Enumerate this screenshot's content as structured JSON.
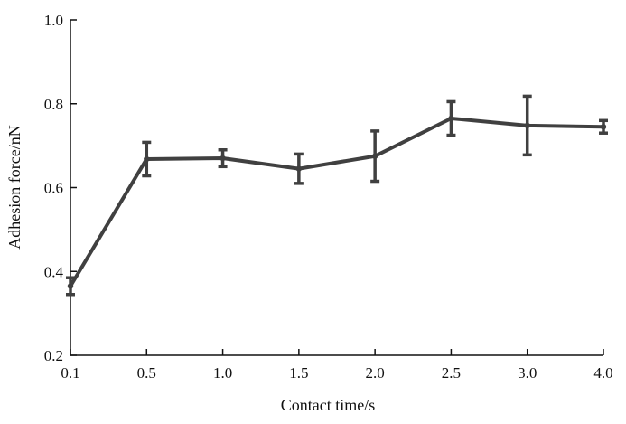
{
  "chart_data": {
    "type": "line",
    "xlabel": "Contact time/s",
    "ylabel": "Adhesion force/nN",
    "categories": [
      "0.1",
      "0.5",
      "1.0",
      "1.5",
      "2.0",
      "2.5",
      "3.0",
      "4.0"
    ],
    "x_axis_kind": "categorical, evenly spaced",
    "ylim": [
      0.2,
      1.0
    ],
    "yticks": [
      "0.2",
      "0.4",
      "0.6",
      "0.8",
      "1.0"
    ],
    "grid": false,
    "series": [
      {
        "values": [
          0.365,
          0.668,
          0.67,
          0.645,
          0.675,
          0.765,
          0.748,
          0.745
        ],
        "error": [
          0.02,
          0.04,
          0.02,
          0.035,
          0.06,
          0.04,
          0.07,
          0.015
        ],
        "color": "#404040",
        "marker": "dot",
        "error_bars": true
      }
    ]
  }
}
